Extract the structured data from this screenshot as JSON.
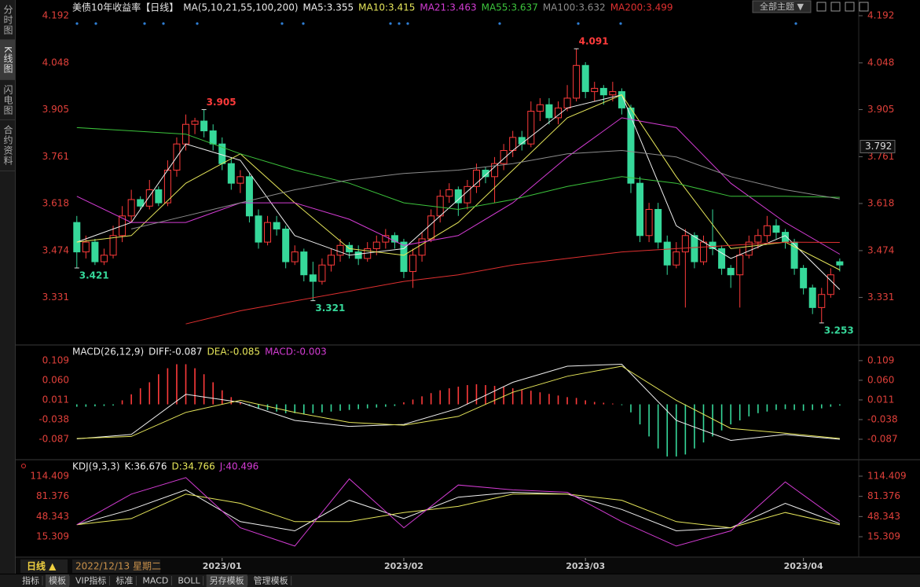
{
  "ui": {
    "sidebar": [
      "分时图",
      "K线图",
      "闪电图",
      "合约资料"
    ],
    "theme_button": "全部主题 ▼",
    "period": "日线 ▲",
    "cursor_date": "2022/12/13 星期二",
    "tabs": [
      "指标",
      "模板",
      "VIP指标",
      "标准",
      "MACD",
      "BOLL",
      "另存模板",
      "管理模板"
    ]
  },
  "chart_data": [
    {
      "type": "candlestick",
      "title": "美债10年收益率【日线】",
      "ma_title": "MA(5,10,21,55,100,200)",
      "xlim": [
        -0.5,
        86
      ],
      "xticks": [
        {
          "value": 16,
          "label": "2023/01"
        },
        {
          "value": 36,
          "label": "2023/02"
        },
        {
          "value": 56,
          "label": "2023/03"
        },
        {
          "value": 80,
          "label": "2023/04"
        }
      ],
      "ylim": [
        3.188,
        4.24
      ],
      "yticks": [
        4.192,
        4.048,
        3.905,
        3.761,
        3.618,
        3.474,
        3.331
      ],
      "cursor_value": 3.792,
      "annotations": [
        "4.091",
        "3.905",
        "3.421",
        "3.321",
        "3.253"
      ],
      "up_color": "#ff3b3b",
      "down_color": "#36d89a",
      "candles": [
        [
          3.56,
          3.58,
          3.421,
          3.47
        ],
        [
          3.47,
          3.52,
          3.45,
          3.5
        ],
        [
          3.5,
          3.51,
          3.43,
          3.44
        ],
        [
          3.44,
          3.48,
          3.43,
          3.46
        ],
        [
          3.46,
          3.55,
          3.45,
          3.52
        ],
        [
          3.52,
          3.61,
          3.5,
          3.58
        ],
        [
          3.58,
          3.66,
          3.56,
          3.63
        ],
        [
          3.63,
          3.64,
          3.6,
          3.61
        ],
        [
          3.61,
          3.69,
          3.6,
          3.66
        ],
        [
          3.66,
          3.67,
          3.61,
          3.62
        ],
        [
          3.62,
          3.75,
          3.61,
          3.72
        ],
        [
          3.72,
          3.82,
          3.7,
          3.8
        ],
        [
          3.8,
          3.89,
          3.78,
          3.86
        ],
        [
          3.86,
          3.88,
          3.83,
          3.87
        ],
        [
          3.87,
          3.905,
          3.82,
          3.84
        ],
        [
          3.84,
          3.86,
          3.78,
          3.8
        ],
        [
          3.8,
          3.82,
          3.72,
          3.74
        ],
        [
          3.74,
          3.76,
          3.66,
          3.68
        ],
        [
          3.68,
          3.72,
          3.65,
          3.7
        ],
        [
          3.7,
          3.71,
          3.56,
          3.58
        ],
        [
          3.58,
          3.6,
          3.48,
          3.5
        ],
        [
          3.5,
          3.58,
          3.49,
          3.56
        ],
        [
          3.56,
          3.58,
          3.52,
          3.54
        ],
        [
          3.54,
          3.55,
          3.42,
          3.44
        ],
        [
          3.44,
          3.49,
          3.43,
          3.47
        ],
        [
          3.47,
          3.48,
          3.38,
          3.4
        ],
        [
          3.4,
          3.44,
          3.321,
          3.38
        ],
        [
          3.38,
          3.45,
          3.37,
          3.43
        ],
        [
          3.43,
          3.48,
          3.41,
          3.46
        ],
        [
          3.46,
          3.51,
          3.44,
          3.49
        ],
        [
          3.49,
          3.5,
          3.45,
          3.47
        ],
        [
          3.47,
          3.49,
          3.43,
          3.45
        ],
        [
          3.45,
          3.5,
          3.44,
          3.48
        ],
        [
          3.48,
          3.52,
          3.46,
          3.5
        ],
        [
          3.5,
          3.54,
          3.48,
          3.52
        ],
        [
          3.52,
          3.53,
          3.48,
          3.5
        ],
        [
          3.5,
          3.51,
          3.39,
          3.41
        ],
        [
          3.41,
          3.48,
          3.36,
          3.46
        ],
        [
          3.46,
          3.53,
          3.44,
          3.51
        ],
        [
          3.51,
          3.6,
          3.5,
          3.58
        ],
        [
          3.58,
          3.66,
          3.56,
          3.64
        ],
        [
          3.64,
          3.68,
          3.62,
          3.66
        ],
        [
          3.66,
          3.67,
          3.58,
          3.62
        ],
        [
          3.62,
          3.69,
          3.6,
          3.67
        ],
        [
          3.67,
          3.74,
          3.65,
          3.72
        ],
        [
          3.72,
          3.73,
          3.68,
          3.7
        ],
        [
          3.7,
          3.76,
          3.62,
          3.74
        ],
        [
          3.74,
          3.8,
          3.72,
          3.78
        ],
        [
          3.78,
          3.84,
          3.76,
          3.82
        ],
        [
          3.82,
          3.84,
          3.78,
          3.8
        ],
        [
          3.8,
          3.93,
          3.79,
          3.9
        ],
        [
          3.9,
          3.94,
          3.87,
          3.92
        ],
        [
          3.92,
          3.94,
          3.86,
          3.88
        ],
        [
          3.88,
          3.93,
          3.86,
          3.91
        ],
        [
          3.91,
          3.98,
          3.9,
          3.94
        ],
        [
          3.94,
          4.091,
          3.93,
          4.04
        ],
        [
          4.04,
          4.05,
          3.94,
          3.96
        ],
        [
          3.96,
          3.99,
          3.93,
          3.97
        ],
        [
          3.97,
          3.98,
          3.92,
          3.95
        ],
        [
          3.95,
          3.99,
          3.93,
          3.96
        ],
        [
          3.96,
          3.97,
          3.89,
          3.91
        ],
        [
          3.91,
          3.92,
          3.65,
          3.68
        ],
        [
          3.68,
          3.7,
          3.5,
          3.52
        ],
        [
          3.52,
          3.62,
          3.5,
          3.6
        ],
        [
          3.6,
          3.62,
          3.48,
          3.5
        ],
        [
          3.5,
          3.52,
          3.4,
          3.43
        ],
        [
          3.43,
          3.5,
          3.42,
          3.47
        ],
        [
          3.47,
          3.54,
          3.3,
          3.52
        ],
        [
          3.52,
          3.53,
          3.42,
          3.44
        ],
        [
          3.44,
          3.52,
          3.43,
          3.5
        ],
        [
          3.5,
          3.6,
          3.46,
          3.48
        ],
        [
          3.48,
          3.49,
          3.4,
          3.42
        ],
        [
          3.42,
          3.43,
          3.36,
          3.4
        ],
        [
          3.4,
          3.48,
          3.3,
          3.46
        ],
        [
          3.46,
          3.52,
          3.45,
          3.5
        ],
        [
          3.5,
          3.54,
          3.48,
          3.52
        ],
        [
          3.52,
          3.58,
          3.5,
          3.55
        ],
        [
          3.55,
          3.57,
          3.51,
          3.53
        ],
        [
          3.53,
          3.54,
          3.48,
          3.5
        ],
        [
          3.5,
          3.51,
          3.4,
          3.42
        ],
        [
          3.42,
          3.43,
          3.34,
          3.36
        ],
        [
          3.36,
          3.37,
          3.28,
          3.3
        ],
        [
          3.3,
          3.36,
          3.253,
          3.34
        ],
        [
          3.34,
          3.42,
          3.33,
          3.4
        ],
        [
          3.44,
          3.45,
          3.41,
          3.43
        ]
      ],
      "x": [
        0,
        6,
        12,
        18,
        24,
        30,
        36,
        42,
        48,
        54,
        60,
        66,
        72,
        78,
        84
      ],
      "series": [
        {
          "name": "MA5:3.355",
          "color": "#f0f0f0",
          "values": [
            3.5,
            3.56,
            3.8,
            3.75,
            3.52,
            3.46,
            3.48,
            3.63,
            3.78,
            3.91,
            3.95,
            3.55,
            3.45,
            3.52,
            3.355
          ]
        },
        {
          "name": "MA10:3.415",
          "color": "#e6e65a",
          "values": [
            3.5,
            3.52,
            3.68,
            3.77,
            3.62,
            3.48,
            3.46,
            3.56,
            3.72,
            3.88,
            3.95,
            3.7,
            3.48,
            3.5,
            3.415
          ]
        },
        {
          "name": "MA21:3.463",
          "color": "#d43cd4",
          "values": [
            3.64,
            3.56,
            3.56,
            3.62,
            3.62,
            3.57,
            3.49,
            3.52,
            3.62,
            3.76,
            3.88,
            3.85,
            3.68,
            3.56,
            3.463
          ]
        },
        {
          "name": "MA55:3.637",
          "color": "#3cc43c",
          "values": [
            3.85,
            3.84,
            3.83,
            3.77,
            3.72,
            3.68,
            3.62,
            3.6,
            3.63,
            3.67,
            3.7,
            3.68,
            3.64,
            3.64,
            3.637
          ]
        },
        {
          "name": "MA100:3.632",
          "color": "#8c8c8c",
          "values": [
            null,
            3.54,
            3.58,
            3.62,
            3.66,
            3.69,
            3.71,
            3.72,
            3.74,
            3.77,
            3.78,
            3.76,
            3.7,
            3.66,
            3.632
          ]
        },
        {
          "name": "MA200:3.499",
          "color": "#e03030",
          "values": [
            null,
            null,
            3.25,
            3.29,
            3.32,
            3.35,
            3.38,
            3.4,
            3.43,
            3.45,
            3.47,
            3.48,
            3.49,
            3.5,
            3.499
          ]
        }
      ]
    },
    {
      "type": "macd",
      "title": "MACD(26,12,9)",
      "ylim": [
        -0.136,
        0.146
      ],
      "yticks": [
        0.109,
        {
          "value": 0.06,
          "label": "0.060"
        },
        0.011,
        -0.038,
        -0.087
      ],
      "up_color": "#ff3b3b",
      "down_color": "#36d89a",
      "histogram": {
        "name": "MACD:-0.003",
        "color": "#d43cd4",
        "values": [
          -0.006,
          -0.006,
          -0.005,
          -0.004,
          -0.003,
          0.01,
          0.025,
          0.04,
          0.055,
          0.075,
          0.09,
          0.1,
          0.1,
          0.09,
          0.075,
          0.055,
          0.035,
          0.018,
          0.005,
          -0.004,
          -0.01,
          -0.014,
          -0.018,
          -0.022,
          -0.022,
          -0.025,
          -0.022,
          -0.02,
          -0.018,
          -0.016,
          -0.014,
          -0.012,
          -0.01,
          -0.008,
          -0.006,
          -0.004,
          0.005,
          0.012,
          0.02,
          0.028,
          0.035,
          0.04,
          0.044,
          0.048,
          0.05,
          0.048,
          0.046,
          0.044,
          0.04,
          0.036,
          0.034,
          0.03,
          0.026,
          0.022,
          0.018,
          0.016,
          0.01,
          0.006,
          0.004,
          0.002,
          -0.002,
          -0.02,
          -0.05,
          -0.08,
          -0.11,
          -0.13,
          -0.13,
          -0.125,
          -0.11,
          -0.095,
          -0.08,
          -0.065,
          -0.05,
          -0.04,
          -0.03,
          -0.022,
          -0.018,
          -0.014,
          -0.012,
          -0.014,
          -0.016,
          -0.014,
          -0.01,
          -0.006,
          -0.003
        ]
      },
      "x": [
        0,
        6,
        12,
        18,
        24,
        30,
        36,
        42,
        48,
        54,
        60,
        66,
        72,
        78,
        84
      ],
      "series": [
        {
          "name": "DIFF:-0.087",
          "color": "#f0f0f0",
          "values": [
            -0.086,
            -0.075,
            0.025,
            0.005,
            -0.04,
            -0.055,
            -0.05,
            -0.01,
            0.055,
            0.095,
            0.1,
            -0.04,
            -0.09,
            -0.075,
            -0.087
          ]
        },
        {
          "name": "DEA:-0.085",
          "color": "#e6e65a",
          "values": [
            -0.085,
            -0.08,
            -0.02,
            0.01,
            -0.02,
            -0.045,
            -0.052,
            -0.03,
            0.03,
            0.07,
            0.095,
            0.01,
            -0.06,
            -0.072,
            -0.085
          ]
        }
      ]
    },
    {
      "type": "line",
      "title": "KDJ(9,3,3)",
      "ylim": [
        -16.8,
        140.1
      ],
      "yticks": [
        114.409,
        81.376,
        48.343,
        15.309
      ],
      "x": [
        0,
        6,
        12,
        18,
        24,
        30,
        36,
        42,
        48,
        54,
        60,
        66,
        72,
        78,
        84
      ],
      "series": [
        {
          "name": "K:36.676",
          "color": "#f0f0f0",
          "values": [
            35,
            60,
            92,
            40,
            25,
            75,
            45,
            80,
            88,
            85,
            60,
            25,
            30,
            70,
            36.676
          ]
        },
        {
          "name": "D:34.766",
          "color": "#e6e65a",
          "values": [
            35,
            45,
            85,
            70,
            40,
            40,
            55,
            65,
            85,
            85,
            75,
            40,
            30,
            55,
            34.766
          ]
        },
        {
          "name": "J:40.496",
          "color": "#d43cd4",
          "values": [
            35,
            85,
            112,
            30,
            0,
            110,
            30,
            100,
            92,
            88,
            40,
            0,
            25,
            105,
            40.496
          ]
        }
      ]
    }
  ]
}
